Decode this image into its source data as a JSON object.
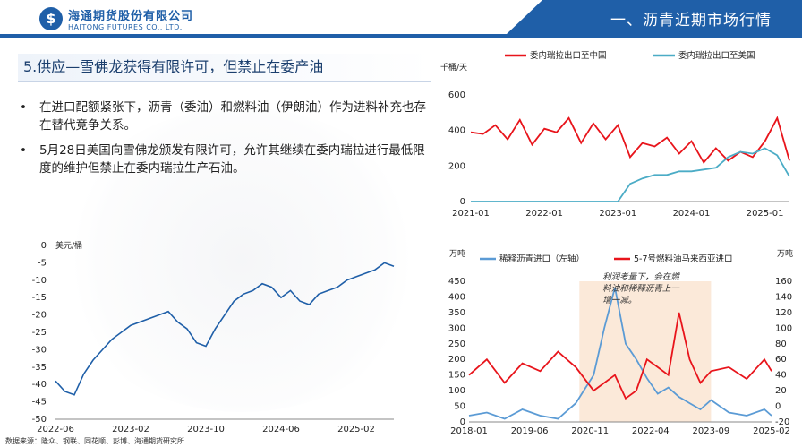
{
  "header": {
    "company_cn": "海通期货股份有限公司",
    "company_en": "HAITONG FUTURES CO., LTD.",
    "section": "一、沥青近期市场行情"
  },
  "slide": {
    "title": "5.供应—雪佛龙获得有限许可，但禁止在委产油",
    "bullets": [
      "在进口配额紧张下，沥青（委油）和燃料油（伊朗油）作为进料补充也存在替代竞争关系。",
      "5月28日美国向雪佛龙颁发有限许可，允许其继续在委内瑞拉进行最低限度的维护但禁止在委内瑞拉生产石油。"
    ],
    "bullet_symbol": "•",
    "footer": "数据来源：隆众、钢联、同花顺、彭博、海通期货研究所"
  },
  "chart_data": [
    {
      "type": "line",
      "id": "venezuela-spread",
      "title": "",
      "ylabel": "美元/桶",
      "ylim": [
        -50,
        0
      ],
      "yticks": [
        0,
        -5,
        -10,
        -15,
        -20,
        -25,
        -30,
        -35,
        -40,
        -45,
        -50
      ],
      "xticks": [
        "2022-06",
        "2023-02",
        "2023-10",
        "2024-06",
        "2025-02"
      ],
      "grid": false,
      "series": [
        {
          "name": "",
          "color": "#1f5fa8",
          "x": [
            "2022-06",
            "2022-07",
            "2022-08",
            "2022-09",
            "2022-10",
            "2022-11",
            "2022-12",
            "2023-01",
            "2023-02",
            "2023-03",
            "2023-04",
            "2023-05",
            "2023-06",
            "2023-07",
            "2023-08",
            "2023-09",
            "2023-10",
            "2023-11",
            "2023-12",
            "2024-01",
            "2024-02",
            "2024-03",
            "2024-04",
            "2024-05",
            "2024-06",
            "2024-07",
            "2024-08",
            "2024-09",
            "2024-10",
            "2024-11",
            "2024-12",
            "2025-01",
            "2025-02",
            "2025-03",
            "2025-04",
            "2025-05",
            "2025-06"
          ],
          "values": [
            -39,
            -42,
            -43,
            -37,
            -33,
            -30,
            -27,
            -25,
            -23,
            -22,
            -21,
            -20,
            -19,
            -22,
            -24,
            -28,
            -29,
            -24,
            -20,
            -16,
            -14,
            -13,
            -11,
            -12,
            -15,
            -13,
            -16,
            -17,
            -14,
            -13,
            -12,
            -10,
            -9,
            -8,
            -7,
            -5,
            -6
          ]
        }
      ]
    },
    {
      "type": "line",
      "id": "venezuela-exports",
      "title": "",
      "ylabel": "千桶/天",
      "ylim": [
        0,
        600
      ],
      "yticks": [
        0,
        200,
        400,
        600
      ],
      "xticks": [
        "2021-01",
        "2022-01",
        "2023-01",
        "2024-01",
        "2025-01"
      ],
      "legend": "top",
      "grid": false,
      "series": [
        {
          "name": "委内瑞拉出口至中国",
          "color": "#e8141b",
          "x": [
            "2021-01",
            "2021-03",
            "2021-05",
            "2021-07",
            "2021-09",
            "2021-11",
            "2022-01",
            "2022-03",
            "2022-05",
            "2022-07",
            "2022-09",
            "2022-11",
            "2023-01",
            "2023-03",
            "2023-05",
            "2023-07",
            "2023-09",
            "2023-11",
            "2024-01",
            "2024-03",
            "2024-05",
            "2024-07",
            "2024-09",
            "2024-11",
            "2025-01",
            "2025-03",
            "2025-05"
          ],
          "values": [
            390,
            380,
            430,
            350,
            460,
            320,
            410,
            390,
            470,
            330,
            440,
            350,
            430,
            250,
            330,
            310,
            360,
            270,
            340,
            220,
            300,
            230,
            280,
            250,
            340,
            470,
            230
          ]
        },
        {
          "name": "委内瑞拉出口至美国",
          "color": "#4bacc6",
          "x": [
            "2021-01",
            "2021-03",
            "2021-05",
            "2021-07",
            "2021-09",
            "2021-11",
            "2022-01",
            "2022-03",
            "2022-05",
            "2022-07",
            "2022-09",
            "2022-11",
            "2023-01",
            "2023-03",
            "2023-05",
            "2023-07",
            "2023-09",
            "2023-11",
            "2024-01",
            "2024-03",
            "2024-05",
            "2024-07",
            "2024-09",
            "2024-11",
            "2025-01",
            "2025-03",
            "2025-05"
          ],
          "values": [
            0,
            0,
            0,
            0,
            0,
            0,
            0,
            0,
            0,
            0,
            0,
            0,
            0,
            100,
            130,
            150,
            150,
            170,
            170,
            180,
            190,
            250,
            280,
            270,
            300,
            260,
            140
          ]
        }
      ]
    },
    {
      "type": "line",
      "id": "imports-compare",
      "title": "",
      "ylabel_left": "万吨",
      "ylabel_right": "万吨",
      "ylim_left": [
        0,
        450
      ],
      "ylim_right": [
        -20,
        160
      ],
      "yticks_left": [
        0,
        50,
        100,
        150,
        200,
        250,
        300,
        350,
        400,
        450
      ],
      "yticks_right": [
        -20,
        0,
        20,
        40,
        60,
        80,
        100,
        120,
        140,
        160
      ],
      "xticks": [
        "2018-01",
        "2019-06",
        "2020-11",
        "2022-04",
        "2023-09",
        "2025-02"
      ],
      "legend": "top",
      "grid": false,
      "annotation": "利润考量下，会在燃料油和稀释沥青上一增一减。",
      "series": [
        {
          "name": "稀释沥青进口（左轴）",
          "color": "#5b9bd5",
          "axis": "left",
          "x": [
            "2018-01",
            "2018-06",
            "2018-11",
            "2019-04",
            "2019-09",
            "2020-02",
            "2020-07",
            "2020-12",
            "2021-03",
            "2021-06",
            "2021-09",
            "2021-12",
            "2022-03",
            "2022-06",
            "2022-09",
            "2022-12",
            "2023-03",
            "2023-06",
            "2023-09",
            "2024-02",
            "2024-07",
            "2024-12",
            "2025-02"
          ],
          "values": [
            20,
            30,
            10,
            40,
            20,
            10,
            60,
            150,
            300,
            430,
            250,
            200,
            140,
            90,
            110,
            80,
            60,
            40,
            70,
            30,
            20,
            40,
            20
          ]
        },
        {
          "name": "5-7号燃料油马来西亚进口",
          "color": "#e8141b",
          "axis": "right",
          "x": [
            "2018-01",
            "2018-06",
            "2018-11",
            "2019-04",
            "2019-09",
            "2020-02",
            "2020-07",
            "2020-12",
            "2021-03",
            "2021-06",
            "2021-09",
            "2021-12",
            "2022-03",
            "2022-06",
            "2022-09",
            "2022-12",
            "2023-03",
            "2023-06",
            "2023-09",
            "2024-02",
            "2024-07",
            "2024-12",
            "2025-02"
          ],
          "values": [
            40,
            60,
            30,
            55,
            45,
            70,
            50,
            20,
            30,
            40,
            10,
            20,
            60,
            50,
            40,
            120,
            60,
            30,
            45,
            50,
            35,
            60,
            45
          ]
        }
      ]
    }
  ]
}
